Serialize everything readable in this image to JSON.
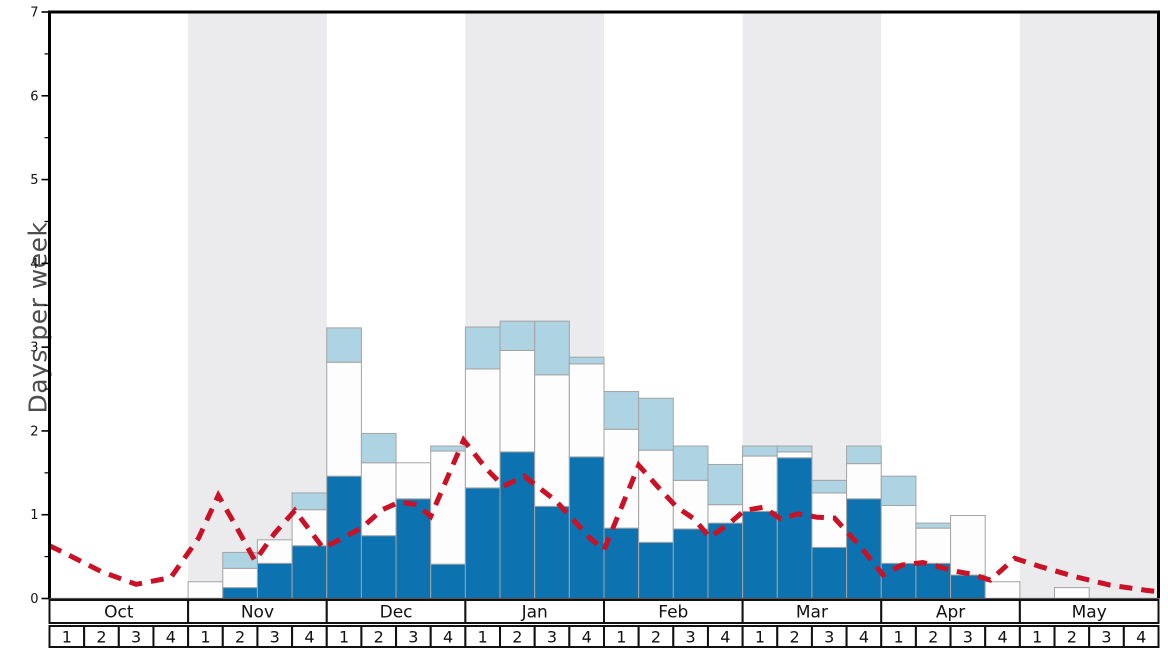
{
  "chart_data": {
    "type": "bar",
    "title": "",
    "ylabel": "Days per week",
    "y_axis": {
      "min": 0,
      "max": 7,
      "major_tick": 1,
      "minor_tick": 0.5,
      "tick_labels": [
        "0",
        "1",
        "2",
        "3",
        "4",
        "5",
        "6",
        "7"
      ]
    },
    "months": [
      "Oct",
      "Nov",
      "Dec",
      "Jan",
      "Feb",
      "Mar",
      "Apr",
      "May"
    ],
    "shaded_months": [
      "Nov",
      "Jan",
      "Mar",
      "May"
    ],
    "weeks_per_month": 4,
    "week_labels": [
      "1",
      "2",
      "3",
      "4"
    ],
    "stacked": true,
    "legend": "none",
    "grid": "off",
    "series": [
      {
        "name": "dark_blue",
        "color": "#0c72b0",
        "values": [
          0,
          0,
          0,
          0,
          0,
          0.13,
          0.42,
          0.63,
          1.46,
          0.75,
          1.19,
          0.41,
          1.32,
          1.75,
          1.1,
          1.69,
          0.84,
          0.67,
          0.83,
          0.9,
          1.04,
          1.68,
          0.61,
          1.19,
          0.42,
          0.42,
          0.28,
          0,
          0,
          0,
          0,
          0
        ]
      },
      {
        "name": "white",
        "color": "#fdfdfd",
        "values": [
          0,
          0,
          0,
          0,
          0.2,
          0.23,
          0.28,
          0.43,
          1.36,
          0.87,
          0.43,
          1.35,
          1.42,
          1.21,
          1.57,
          1.11,
          1.18,
          1.1,
          0.58,
          0.22,
          0.66,
          0.07,
          0.65,
          0.42,
          0.69,
          0.42,
          0.71,
          0.2,
          0,
          0.13,
          0,
          0
        ]
      },
      {
        "name": "light_blue",
        "color": "#aed3e3",
        "values": [
          0,
          0,
          0,
          0,
          0,
          0.19,
          0,
          0.2,
          0.41,
          0.35,
          0,
          0.06,
          0.5,
          0.35,
          0.64,
          0.08,
          0.45,
          0.62,
          0.41,
          0.48,
          0.12,
          0.07,
          0.15,
          0.21,
          0.35,
          0.06,
          0,
          0,
          0,
          0,
          0,
          0
        ]
      }
    ],
    "line": {
      "name": "dashed_red_line",
      "color": "#cb1126",
      "style": "dashed",
      "dash": [
        13,
        9
      ],
      "width": 5,
      "points_weeks_vs_days": [
        [
          0,
          0.63
        ],
        [
          0.5,
          0.53
        ],
        [
          1.5,
          0.32
        ],
        [
          2.5,
          0.17
        ],
        [
          3.5,
          0.25
        ],
        [
          4.3,
          0.72
        ],
        [
          4.87,
          1.23
        ],
        [
          5.4,
          0.85
        ],
        [
          5.93,
          0.45
        ],
        [
          6.5,
          0.78
        ],
        [
          7.08,
          1.05
        ],
        [
          7.9,
          0.6
        ],
        [
          9.0,
          0.84
        ],
        [
          9.6,
          1.06
        ],
        [
          10.1,
          1.15
        ],
        [
          10.6,
          1.12
        ],
        [
          11.0,
          0.98
        ],
        [
          11.95,
          1.89
        ],
        [
          12.6,
          1.55
        ],
        [
          13.1,
          1.34
        ],
        [
          13.7,
          1.46
        ],
        [
          14.6,
          1.17
        ],
        [
          15.6,
          0.72
        ],
        [
          16.0,
          0.58
        ],
        [
          17.0,
          1.59
        ],
        [
          17.6,
          1.31
        ],
        [
          18.1,
          1.09
        ],
        [
          18.6,
          0.95
        ],
        [
          19.05,
          0.73
        ],
        [
          19.6,
          0.89
        ],
        [
          20.05,
          1.05
        ],
        [
          20.6,
          1.09
        ],
        [
          21.1,
          0.95
        ],
        [
          21.6,
          1.01
        ],
        [
          22.15,
          0.97
        ],
        [
          22.65,
          0.96
        ],
        [
          23.4,
          0.62
        ],
        [
          24.05,
          0.28
        ],
        [
          24.6,
          0.4
        ],
        [
          25.2,
          0.43
        ],
        [
          26.1,
          0.33
        ],
        [
          26.6,
          0.29
        ],
        [
          27.15,
          0.22
        ],
        [
          27.85,
          0.48
        ],
        [
          28.6,
          0.38
        ],
        [
          29.6,
          0.26
        ],
        [
          30.6,
          0.16
        ],
        [
          31.6,
          0.1
        ],
        [
          32,
          0.08
        ]
      ]
    },
    "colors": {
      "band": "#ebebed",
      "bar_border": "#a3a3a3",
      "axis": "#000000",
      "x_axis_line": "#555555",
      "row_border": "#111111",
      "tick_text": "#111111",
      "ylabel_text": "#4d4d4d"
    }
  }
}
